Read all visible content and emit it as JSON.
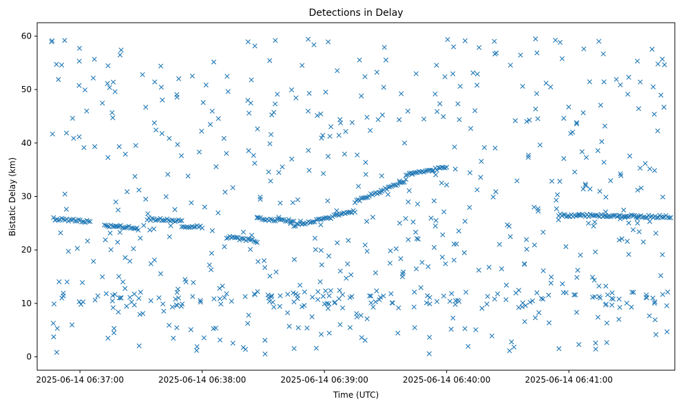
{
  "chart_data": {
    "type": "scatter",
    "title": "Detections in Delay",
    "xlabel": "Time (UTC)",
    "ylabel": "Bistatic Delay (km)",
    "x_ticks": [
      "2025-06-14 06:37:00",
      "2025-06-14 06:38:00",
      "2025-06-14 06:39:00",
      "2025-06-14 06:40:00",
      "2025-06-14 06:41:00"
    ],
    "y_ticks": [
      "0",
      "10",
      "20",
      "30",
      "40",
      "50",
      "60"
    ],
    "xlim": [
      "2025-06-14 06:36:39",
      "2025-06-14 06:41:52"
    ],
    "ylim": [
      -2.5,
      62.5
    ],
    "grid": false,
    "marker": "x",
    "color": "#1f77b4",
    "series": [
      {
        "structured_tracks": [
          {
            "x_start": "2025-06-14 06:36:47",
            "x_end": "2025-06-14 06:37:05",
            "y_start": 25.8,
            "y_end": 25.3
          },
          {
            "x_start": "2025-06-14 06:37:12",
            "x_end": "2025-06-14 06:37:28",
            "y_start": 24.6,
            "y_end": 24.2
          },
          {
            "x_start": "2025-06-14 06:37:33",
            "x_end": "2025-06-14 06:37:50",
            "y_start": 25.8,
            "y_end": 25.4
          },
          {
            "x_start": "2025-06-14 06:37:50",
            "x_end": "2025-06-14 06:38:00",
            "y_start": 24.5,
            "y_end": 24.3
          },
          {
            "x_start": "2025-06-14 06:38:12",
            "x_end": "2025-06-14 06:38:27",
            "y_start": 22.4,
            "y_end": 21.6
          },
          {
            "x_start": "2025-06-14 06:38:27",
            "x_end": "2025-06-14 06:38:45",
            "y_start": 25.9,
            "y_end": 25.4
          },
          {
            "x_start": "2025-06-14 06:38:45",
            "x_end": "2025-06-14 06:39:15",
            "y_start": 24.5,
            "y_end": 27.2
          },
          {
            "x_start": "2025-06-14 06:39:15",
            "x_end": "2025-06-14 06:39:40",
            "y_start": 29.0,
            "y_end": 33.0
          },
          {
            "x_start": "2025-06-14 06:39:40",
            "x_end": "2025-06-14 06:40:00",
            "y_start": 34.0,
            "y_end": 35.5
          },
          {
            "x_start": "2025-06-14 06:40:55",
            "x_end": "2025-06-14 06:41:50",
            "y_start": 26.5,
            "y_end": 26.2
          }
        ]
      }
    ]
  }
}
